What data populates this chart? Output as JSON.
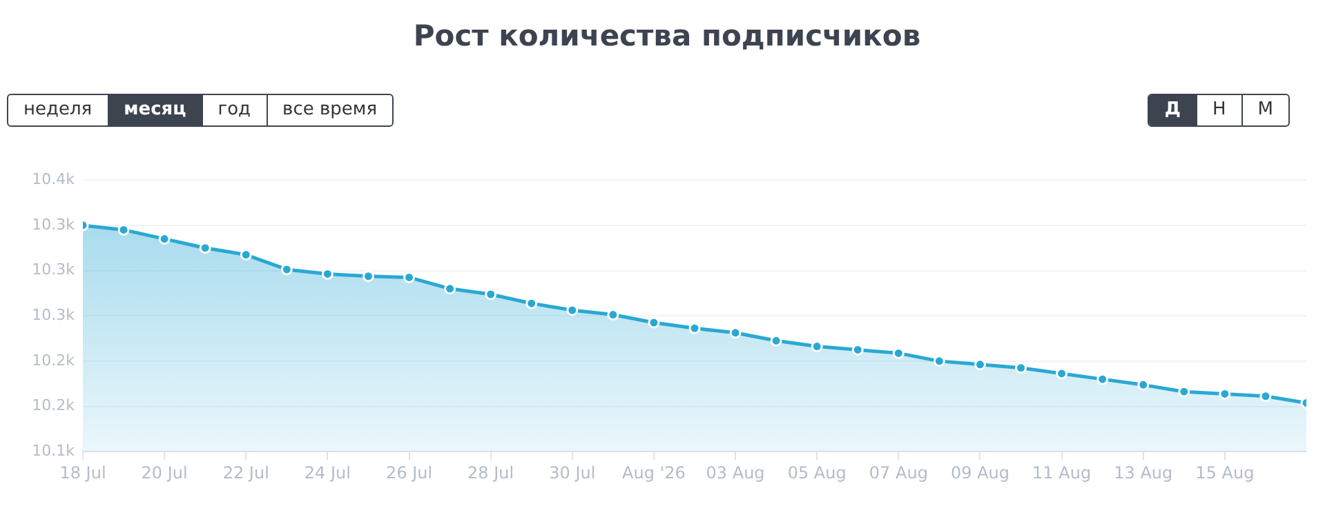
{
  "chart_data": {
    "type": "area",
    "title": "Рост количества подписчиков",
    "annotations": [
      "неделя",
      "месяц",
      "год",
      "все время",
      "Д",
      "Н",
      "М"
    ],
    "x": [
      "2026-07-18",
      "2026-07-19",
      "2026-07-20",
      "2026-07-21",
      "2026-07-22",
      "2026-07-23",
      "2026-07-24",
      "2026-07-25",
      "2026-07-26",
      "2026-07-27",
      "2026-07-28",
      "2026-07-29",
      "2026-07-30",
      "2026-07-31",
      "2026-08-01",
      "2026-08-02",
      "2026-08-03",
      "2026-08-04",
      "2026-08-05",
      "2026-08-06",
      "2026-08-07",
      "2026-08-08",
      "2026-08-09",
      "2026-08-10",
      "2026-08-11",
      "2026-08-12",
      "2026-08-13",
      "2026-08-14",
      "2026-08-15",
      "2026-08-16",
      "2026-08-17"
    ],
    "series": [
      {
        "color": "#2aa8d4",
        "values": [
          10340,
          10336,
          10328,
          10320,
          10314,
          10301,
          10297,
          10295,
          10294,
          10284,
          10279,
          10271,
          10265,
          10261,
          10254,
          10249,
          10245,
          10238,
          10233,
          10230,
          10227,
          10220,
          10217,
          10214,
          10209,
          10204,
          10199,
          10193,
          10191,
          10189,
          10183
        ]
      }
    ],
    "xlim": [
      "2026-07-18",
      "2026-08-17"
    ],
    "xticks": [
      {
        "value": "2026-07-18",
        "label": "18 Jul"
      },
      {
        "value": "2026-07-20",
        "label": "20 Jul"
      },
      {
        "value": "2026-07-22",
        "label": "22 Jul"
      },
      {
        "value": "2026-07-24",
        "label": "24 Jul"
      },
      {
        "value": "2026-07-26",
        "label": "26 Jul"
      },
      {
        "value": "2026-07-28",
        "label": "28 Jul"
      },
      {
        "value": "2026-07-30",
        "label": "30 Jul"
      },
      {
        "value": "2026-08-01",
        "label": "Aug '26"
      },
      {
        "value": "2026-08-03",
        "label": "03 Aug"
      },
      {
        "value": "2026-08-05",
        "label": "05 Aug"
      },
      {
        "value": "2026-08-07",
        "label": "07 Aug"
      },
      {
        "value": "2026-08-09",
        "label": "09 Aug"
      },
      {
        "value": "2026-08-11",
        "label": "11 Aug"
      },
      {
        "value": "2026-08-13",
        "label": "13 Aug"
      },
      {
        "value": "2026-08-15",
        "label": "15 Aug"
      }
    ],
    "ylim": [
      10140,
      10380
    ],
    "yticks": [
      {
        "value": 10140,
        "label": "10.1k"
      },
      {
        "value": 10180,
        "label": "10.2k"
      },
      {
        "value": 10220,
        "label": "10.2k"
      },
      {
        "value": 10260,
        "label": "10.3k"
      },
      {
        "value": 10300,
        "label": "10.3k"
      },
      {
        "value": 10340,
        "label": "10.3k"
      },
      {
        "value": 10380,
        "label": "10.4k"
      }
    ],
    "grid": "y",
    "legend": false,
    "marker": "circle",
    "line_style": "solid"
  }
}
